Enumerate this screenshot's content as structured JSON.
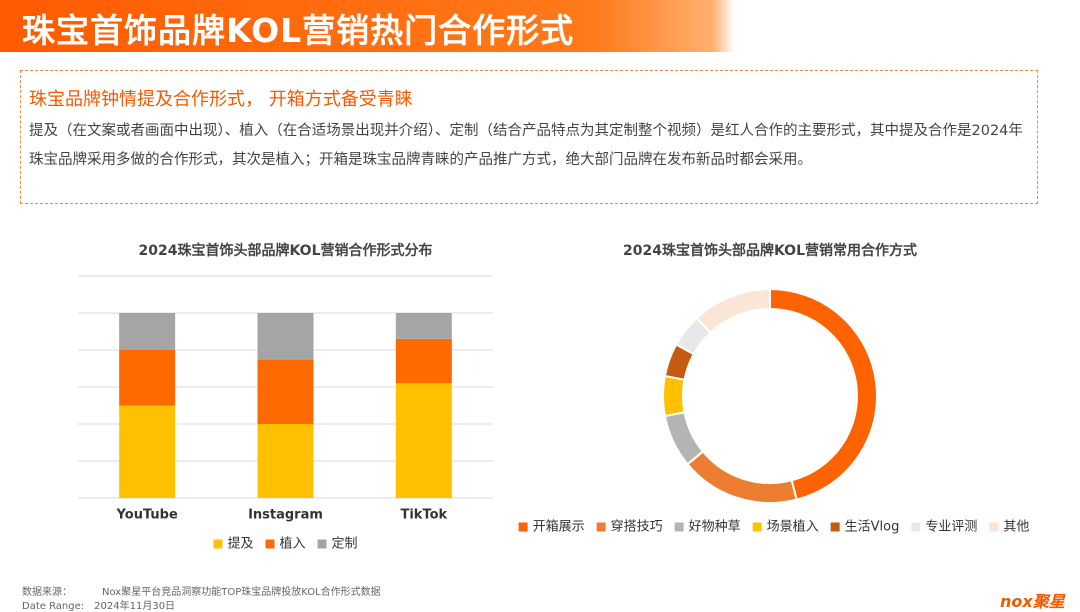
{
  "header": {
    "title": "珠宝首饰品牌KOL营销热门合作形式"
  },
  "summary": {
    "heading": "珠宝品牌钟情提及合作形式， 开箱方式备受青睐",
    "body": "提及（在文案或者画面中出现）、植入（在合适场景出现并介绍）、定制（结合产品特点为其定制整个视频）是红人合作的主要形式，其中提及合作是2024年珠宝品牌采用多做的合作形式，其次是植入；开箱是珠宝品牌青睐的产品推广方式，绝大部门品牌在发布新品时都会采用。"
  },
  "chart_data": [
    {
      "type": "bar",
      "stacked": true,
      "title": "2024珠宝首饰头部品牌KOL营销合作形式分布",
      "categories": [
        "YouTube",
        "Instagram",
        "TikTok"
      ],
      "series": [
        {
          "name": "提及",
          "color": "#ffc000",
          "values": [
            50,
            40,
            62
          ]
        },
        {
          "name": "植入",
          "color": "#ff6a00",
          "values": [
            30,
            35,
            24
          ]
        },
        {
          "name": "定制",
          "color": "#a5a5a5",
          "values": [
            20,
            25,
            14
          ]
        }
      ],
      "ylim": [
        0,
        120
      ],
      "yticks": [
        0,
        20,
        40,
        60,
        80,
        100,
        120
      ],
      "grid": true,
      "tick_labels": false,
      "legend": "bottom"
    },
    {
      "type": "donut",
      "title": "2024珠宝首饰头部品牌KOL营销常用合作方式",
      "categories": [
        "开箱展示",
        "穿搭技巧",
        "好物种草",
        "场景植入",
        "生活Vlog",
        "专业评测",
        "其他"
      ],
      "values": [
        46,
        18,
        8,
        6,
        5,
        5,
        12
      ],
      "colors": [
        "#ff6200",
        "#ed7d31",
        "#b4b4b4",
        "#ffc000",
        "#c55a11",
        "#e8e8e8",
        "#fbe5d6"
      ],
      "legend": "bottom"
    }
  ],
  "footer": {
    "source_label": "数据来源：",
    "source": "Nox聚星平台竞品洞察功能TOP珠宝品牌投放KOL合作形式数据",
    "date_label": "Date Range:",
    "date": "2024年11月30日",
    "logo": "nox聚星"
  }
}
